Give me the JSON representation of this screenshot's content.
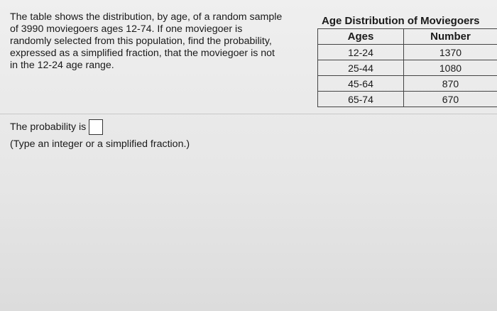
{
  "question": {
    "lines": [
      "The table shows the distribution, by age, of a random sample",
      "of 3990 moviegoers ages 12-74. If one moviegoer is",
      "randomly selected from this population, find the probability,",
      "expressed as a simplified fraction, that the moviegoer is not",
      "in the 12-24 age range."
    ]
  },
  "table": {
    "title": "Age Distribution of Moviegoers",
    "header": [
      "Ages",
      "Number"
    ],
    "rows": [
      [
        "12-24",
        1370
      ],
      [
        "25-44",
        1080
      ],
      [
        "45-64",
        870
      ],
      [
        "65-74",
        670
      ]
    ]
  },
  "answer": {
    "prompt": "The probability is",
    "hint": "(Type an integer or a simplified fraction.)"
  }
}
